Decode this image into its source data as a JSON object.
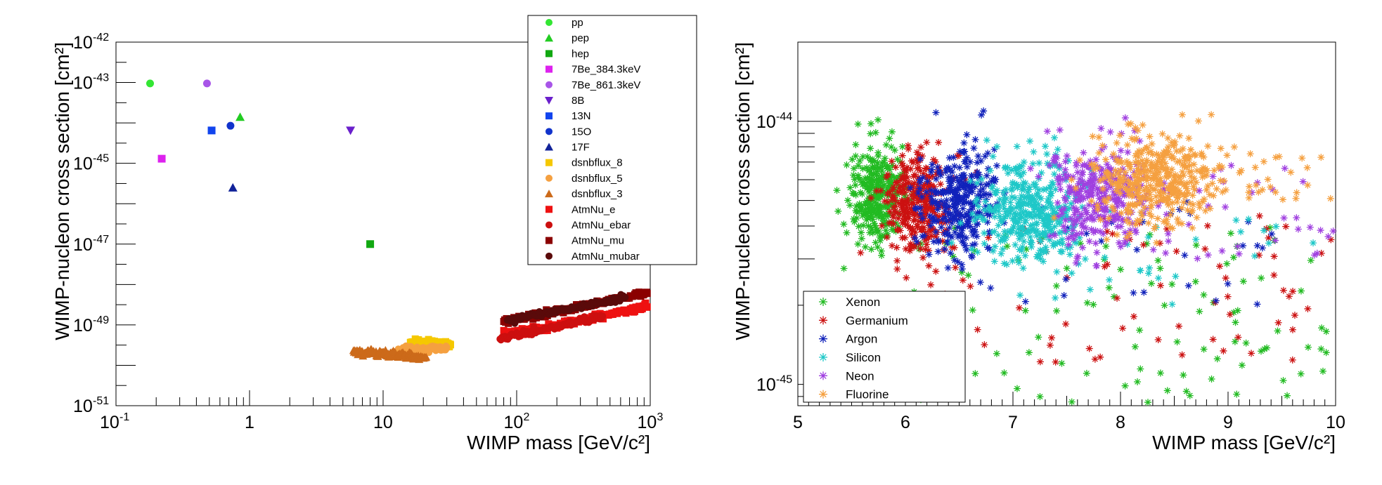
{
  "chart_data": [
    {
      "type": "scatter",
      "title": "",
      "xlabel": "WIMP mass [GeV/c²]",
      "ylabel": "WIMP-nucleon cross section [cm²]",
      "xscale": "log",
      "yscale": "log",
      "xlim": [
        0.1,
        1000
      ],
      "ylim": [
        1e-51,
        1e-42
      ],
      "x_ticks": [
        {
          "base": "10",
          "exp": "-1"
        },
        {
          "base": "1",
          "exp": ""
        },
        {
          "base": "10",
          "exp": ""
        },
        {
          "base": "10",
          "exp": "2"
        },
        {
          "base": "10",
          "exp": "3"
        }
      ],
      "y_ticks": [
        {
          "base": "10",
          "exp": "-51"
        },
        {
          "base": "10",
          "exp": "-49"
        },
        {
          "base": "10",
          "exp": "-47"
        },
        {
          "base": "10",
          "exp": "-45"
        },
        {
          "base": "10",
          "exp": "-43"
        },
        {
          "base": "10",
          "exp": "-42"
        }
      ],
      "legend_position": "top-right",
      "series": [
        {
          "name": "pp",
          "marker": "circle",
          "color": "#33e633",
          "points": [
            [
              0.18,
              9.5e-44
            ]
          ]
        },
        {
          "name": "pep",
          "marker": "triangle-up",
          "color": "#22cc22",
          "points": [
            [
              0.85,
              1.4e-44
            ]
          ]
        },
        {
          "name": "hep",
          "marker": "square",
          "color": "#11a811",
          "points": [
            [
              8,
              1e-47
            ]
          ]
        },
        {
          "name": "7Be_384.3keV",
          "marker": "square",
          "color": "#dd22ee",
          "points": [
            [
              0.22,
              1.3e-45
            ]
          ]
        },
        {
          "name": "7Be_861.3keV",
          "marker": "circle",
          "color": "#a855e8",
          "points": [
            [
              0.48,
              9.5e-44
            ]
          ]
        },
        {
          "name": "8B",
          "marker": "triangle-down",
          "color": "#6a1fcc",
          "points": [
            [
              5.7,
              6.5e-45
            ]
          ]
        },
        {
          "name": "13N",
          "marker": "square",
          "color": "#1144ee",
          "points": [
            [
              0.52,
              6.5e-45
            ]
          ]
        },
        {
          "name": "15O",
          "marker": "circle",
          "color": "#1133cc",
          "points": [
            [
              0.72,
              8.5e-45
            ]
          ]
        },
        {
          "name": "17F",
          "marker": "triangle-up",
          "color": "#112299",
          "points": [
            [
              0.75,
              2.5e-46
            ]
          ]
        },
        {
          "name": "dsnbflux_8",
          "marker": "square",
          "color": "#f5c800",
          "points": [
            [
              16,
              3.6e-50
            ],
            [
              18,
              3.9e-50
            ],
            [
              20,
              3.6e-50
            ],
            [
              23,
              3.5e-50
            ],
            [
              26,
              3.4e-50
            ],
            [
              29,
              3.3e-50
            ],
            [
              32,
              3.2e-50
            ]
          ]
        },
        {
          "name": "dsnbflux_5",
          "marker": "circle",
          "color": "#f5a040",
          "points": [
            [
              13,
              2.2e-50
            ],
            [
              15,
              2.6e-50
            ],
            [
              17,
              2.4e-50
            ],
            [
              19,
              2.6e-50
            ],
            [
              21,
              2.4e-50
            ],
            [
              24,
              2.8e-50
            ],
            [
              27,
              2.6e-50
            ],
            [
              30,
              2.8e-50
            ]
          ]
        },
        {
          "name": "dsnbflux_3",
          "marker": "triangle-up",
          "color": "#cc6a1a",
          "points": [
            [
              6,
              2.3e-50
            ],
            [
              7,
              2e-50
            ],
            [
              8,
              2.2e-50
            ],
            [
              9,
              1.9e-50
            ],
            [
              10,
              2.1e-50
            ],
            [
              11,
              1.8e-50
            ],
            [
              12,
              2e-50
            ],
            [
              13,
              1.7e-50
            ],
            [
              14,
              1.9e-50
            ],
            [
              15,
              1.6e-50
            ],
            [
              16,
              1.8e-50
            ],
            [
              17,
              1.6e-50
            ],
            [
              21,
              1.6e-50
            ]
          ]
        },
        {
          "name": "AtmNu_e",
          "marker": "square",
          "color": "#ee1111",
          "points": [
            [
              80,
              5.5e-50
            ],
            [
              100,
              6.5e-50
            ],
            [
              130,
              7.5e-50
            ],
            [
              170,
              9e-50
            ],
            [
              220,
              1.05e-49
            ],
            [
              280,
              1.25e-49
            ],
            [
              360,
              1.5e-49
            ],
            [
              460,
              1.8e-49
            ],
            [
              600,
              2.1e-49
            ],
            [
              780,
              2.5e-49
            ],
            [
              950,
              2.8e-49
            ]
          ]
        },
        {
          "name": "AtmNu_ebar",
          "marker": "circle",
          "color": "#cc0f0f",
          "points": [
            [
              75,
              4.5e-50
            ],
            [
              95,
              5.5e-50
            ],
            [
              120,
              6.5e-50
            ],
            [
              150,
              7.5e-50
            ],
            [
              200,
              9e-50
            ],
            [
              260,
              1.1e-49
            ],
            [
              340,
              1.35e-49
            ],
            [
              440,
              1.65e-49
            ]
          ]
        },
        {
          "name": "AtmNu_mu",
          "marker": "square",
          "color": "#8b0000",
          "points": [
            [
              80,
              1.2e-49
            ],
            [
              100,
              1.4e-49
            ],
            [
              130,
              1.65e-49
            ],
            [
              170,
              1.95e-49
            ],
            [
              220,
              2.3e-49
            ],
            [
              280,
              2.7e-49
            ],
            [
              360,
              3.2e-49
            ],
            [
              460,
              3.8e-49
            ],
            [
              600,
              4.5e-49
            ],
            [
              780,
              5.3e-49
            ],
            [
              950,
              6e-49
            ]
          ]
        },
        {
          "name": "AtmNu_mubar",
          "marker": "circle",
          "color": "#5a0a0a",
          "points": [
            [
              85,
              1.3e-49
            ],
            [
              110,
              1.55e-49
            ],
            [
              140,
              1.8e-49
            ],
            [
              180,
              2.1e-49
            ],
            [
              230,
              2.5e-49
            ],
            [
              300,
              2.9e-49
            ],
            [
              390,
              3.4e-49
            ],
            [
              500,
              4e-49
            ],
            [
              650,
              4.8e-49
            ]
          ]
        }
      ]
    },
    {
      "type": "scatter",
      "title": "",
      "xlabel": "WIMP mass [GeV/c²]",
      "ylabel": "WIMP-nucleon cross section [cm²]",
      "xscale": "linear",
      "yscale": "log",
      "xlim": [
        5,
        10
      ],
      "ylim": [
        8.3e-46,
        2e-44
      ],
      "x_ticks": [
        "5",
        "6",
        "7",
        "8",
        "9",
        "10"
      ],
      "y_ticks": [
        {
          "base": "10",
          "exp": "-45"
        },
        {
          "base": "10",
          "exp": "-44"
        }
      ],
      "legend_position": "bottom-left",
      "marker": "asterisk",
      "series": [
        {
          "name": "Xenon",
          "color": "#22bb22",
          "clusters": [
            {
              "x": 5.75,
              "y": 5.2e-45,
              "sx": 0.13,
              "sy": 0.2,
              "n": 300
            }
          ],
          "scatter": {
            "x": [
              5.3,
              9.95
            ],
            "y": [
              8.5e-46,
              4e-45
            ],
            "n": 120
          }
        },
        {
          "name": "Germanium",
          "color": "#cc1111",
          "clusters": [
            {
              "x": 6.1,
              "y": 4.8e-45,
              "sx": 0.16,
              "sy": 0.2,
              "n": 300
            }
          ],
          "scatter": {
            "x": [
              6.2,
              9.98
            ],
            "y": [
              1.2e-45,
              4.5e-45
            ],
            "n": 70
          }
        },
        {
          "name": "Argon",
          "color": "#1122bb",
          "clusters": [
            {
              "x": 6.5,
              "y": 5e-45,
              "sx": 0.17,
              "sy": 0.2,
              "n": 300
            }
          ],
          "scatter": {
            "x": [
              6.5,
              9.6
            ],
            "y": [
              2e-45,
              5e-45
            ],
            "n": 30
          }
        },
        {
          "name": "Silicon",
          "color": "#1ec8c8",
          "clusters": [
            {
              "x": 7.15,
              "y": 4.5e-45,
              "sx": 0.24,
              "sy": 0.2,
              "n": 380
            }
          ],
          "scatter": {
            "x": [
              7.3,
              9.8
            ],
            "y": [
              2e-45,
              4.5e-45
            ],
            "n": 30
          }
        },
        {
          "name": "Neon",
          "color": "#a040e0",
          "clusters": [
            {
              "x": 7.8,
              "y": 5.2e-45,
              "sx": 0.24,
              "sy": 0.2,
              "n": 300
            }
          ],
          "scatter": {
            "x": [
              7.8,
              9.98
            ],
            "y": [
              3e-45,
              7e-45
            ],
            "n": 45
          }
        },
        {
          "name": "Fluorine",
          "color": "#f5a040",
          "clusters": [
            {
              "x": 8.3,
              "y": 6e-45,
              "sx": 0.27,
              "sy": 0.17,
              "n": 380
            }
          ],
          "scatter": {
            "x": [
              8.5,
              9.98
            ],
            "y": [
              5e-45,
              8e-45
            ],
            "n": 45
          }
        }
      ]
    }
  ]
}
